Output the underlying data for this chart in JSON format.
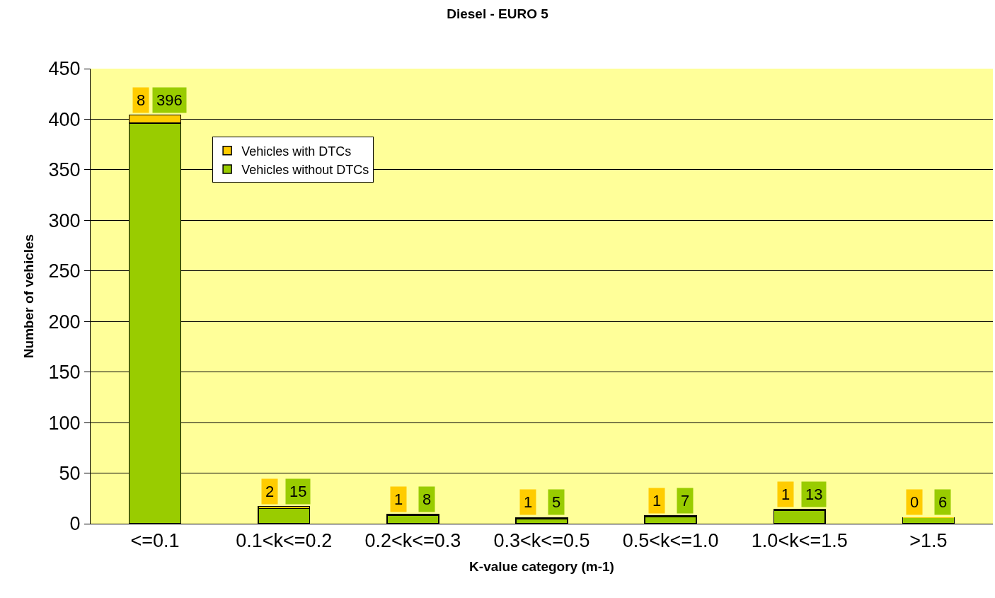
{
  "chart_data": {
    "type": "bar",
    "title": "Diesel - EURO 5",
    "xlabel": "K-value category (m-1)",
    "ylabel": "Number of vehicles",
    "categories": [
      "<=0.1",
      "0.1<k<=0.2",
      "0.2<k<=0.3",
      "0.3<k<=0.5",
      "0.5<k<=1.0",
      "1.0<k<=1.5",
      ">1.5"
    ],
    "series": [
      {
        "name": "Vehicles without DTCs",
        "color": "#99cc00",
        "values": [
          396,
          15,
          8,
          5,
          7,
          13,
          6
        ]
      },
      {
        "name": "Vehicles with DTCs",
        "color": "#ffcc00",
        "values": [
          8,
          2,
          1,
          1,
          1,
          1,
          0
        ]
      }
    ],
    "stacked": true,
    "data_labels": true,
    "ylim": [
      0,
      450
    ],
    "yticks": [
      0,
      50,
      100,
      150,
      200,
      250,
      300,
      350,
      400,
      450
    ],
    "grid": "y",
    "legend": "top left"
  }
}
